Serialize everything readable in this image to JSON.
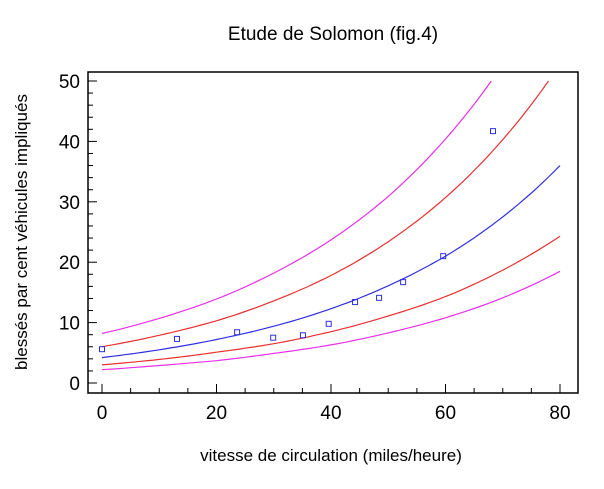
{
  "chart_data": {
    "type": "scatter",
    "title": "Etude de Solomon (fig.4)",
    "xlabel": "vitesse de circulation (miles/heure)",
    "ylabel": "blessés par cent véhicules impliqués",
    "xlim": [
      -3,
      82
    ],
    "ylim": [
      -2,
      52
    ],
    "xticks": [
      "0",
      "20",
      "40",
      "60",
      "80"
    ],
    "xtick_values": [
      0,
      20,
      40,
      60,
      80
    ],
    "yticks": [
      "0",
      "10",
      "20",
      "30",
      "40",
      "50"
    ],
    "ytick_values": [
      0,
      10,
      20,
      30,
      40,
      50
    ],
    "grid": false,
    "points": {
      "name": "observations",
      "color": "#3030e0",
      "x": [
        0,
        13.1,
        23.6,
        29.9,
        35.1,
        39.6,
        44.2,
        48.4,
        52.6,
        59.6,
        68.3
      ],
      "y": [
        5.6,
        7.3,
        8.4,
        7.5,
        7.9,
        9.8,
        13.4,
        14.1,
        16.7,
        21.0,
        41.7
      ]
    },
    "series": [
      {
        "name": "fit",
        "color": "#3030e0",
        "x": [
          0,
          10,
          20,
          30,
          40,
          50,
          60,
          70,
          80
        ],
        "y": [
          4.2,
          5.5,
          7.2,
          9.4,
          12.3,
          16.1,
          21.0,
          27.5,
          36.0
        ]
      },
      {
        "name": "upper-confidence",
        "color": "#e83030",
        "x": [
          0,
          10,
          20,
          30,
          40,
          50,
          60,
          70,
          78
        ],
        "y": [
          6,
          7.9,
          10.3,
          13.6,
          17.8,
          23.4,
          30.7,
          40.3,
          50
        ]
      },
      {
        "name": "lower-confidence",
        "color": "#e83030",
        "x": [
          0,
          10,
          20,
          30,
          40,
          50,
          60,
          70,
          80
        ],
        "y": [
          3,
          3.9,
          5.1,
          6.5,
          8.5,
          11.1,
          14.3,
          18.7,
          24.3
        ]
      },
      {
        "name": "upper-prediction",
        "color": "#e830e8",
        "x": [
          0,
          10,
          20,
          30,
          40,
          50,
          60,
          68
        ],
        "y": [
          8.2,
          10.7,
          13.9,
          18.2,
          23.7,
          30.9,
          40.4,
          50
        ]
      },
      {
        "name": "lower-prediction",
        "color": "#e830e8",
        "x": [
          0,
          10,
          20,
          30,
          40,
          50,
          60,
          70,
          80
        ],
        "y": [
          2.2,
          2.9,
          3.7,
          4.9,
          6.3,
          8.3,
          10.8,
          14.1,
          18.5
        ]
      }
    ]
  }
}
